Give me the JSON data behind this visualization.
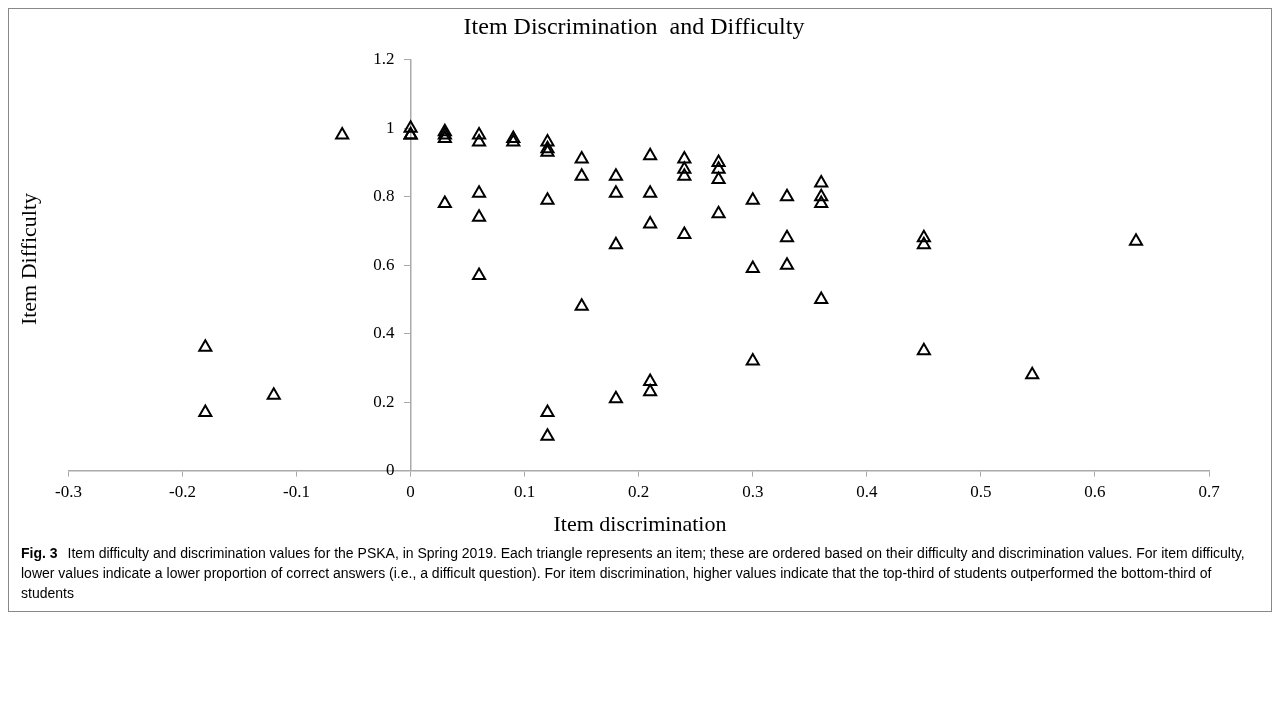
{
  "chart_data": {
    "type": "scatter",
    "title": "Item Discrimination  and Difficulty",
    "xlabel": "Item discrimination",
    "ylabel": "Item Difficulty",
    "xlim": [
      -0.3,
      0.7
    ],
    "xticks": [
      -0.3,
      -0.2,
      -0.1,
      0,
      0.1,
      0.2,
      0.3,
      0.4,
      0.5,
      0.6,
      0.7
    ],
    "ylim": [
      0,
      1.2
    ],
    "yticks": [
      0,
      0.2,
      0.4,
      0.6,
      0.8,
      1,
      1.2
    ],
    "grid": false,
    "legend": false,
    "marker": "triangle",
    "series": [
      {
        "color": "#000000",
        "x": [
          -0.18,
          -0.18,
          -0.12,
          -0.06,
          0,
          0,
          0,
          0.03,
          0.03,
          0.03,
          0.03,
          0.06,
          0.06,
          0.06,
          0.06,
          0.06,
          0.09,
          0.09,
          0.12,
          0.12,
          0.12,
          0.12,
          0.12,
          0.12,
          0.15,
          0.15,
          0.15,
          0.18,
          0.18,
          0.18,
          0.18,
          0.21,
          0.21,
          0.21,
          0.21,
          0.21,
          0.24,
          0.24,
          0.24,
          0.24,
          0.27,
          0.27,
          0.27,
          0.27,
          0.3,
          0.3,
          0.3,
          0.33,
          0.33,
          0.33,
          0.36,
          0.36,
          0.36,
          0.36,
          0.45,
          0.45,
          0.45,
          0.545,
          0.636
        ],
        "values": [
          0.36,
          0.17,
          0.22,
          0.98,
          1.0,
          0.98,
          0.98,
          0.99,
          0.98,
          0.97,
          0.78,
          0.98,
          0.96,
          0.81,
          0.74,
          0.57,
          0.97,
          0.96,
          0.96,
          0.94,
          0.93,
          0.79,
          0.17,
          0.1,
          0.91,
          0.86,
          0.48,
          0.86,
          0.81,
          0.66,
          0.21,
          0.92,
          0.81,
          0.72,
          0.26,
          0.23,
          0.91,
          0.88,
          0.86,
          0.69,
          0.9,
          0.88,
          0.85,
          0.75,
          0.79,
          0.59,
          0.32,
          0.8,
          0.68,
          0.6,
          0.84,
          0.8,
          0.78,
          0.5,
          0.68,
          0.66,
          0.35,
          0.28,
          0.67
        ]
      }
    ],
    "annotations": [
      "Fig. 3",
      "Item difficulty and discrimination values for the PSKA, in Spring 2019. Each triangle represents an item; these are ordered based on their difficulty and discrimination values. For item difficulty, lower values indicate a lower proportion of correct answers (i.e., a difficult question). For item discrimination, higher values indicate that the top-third of students outperformed the bottom-third of students"
    ]
  }
}
